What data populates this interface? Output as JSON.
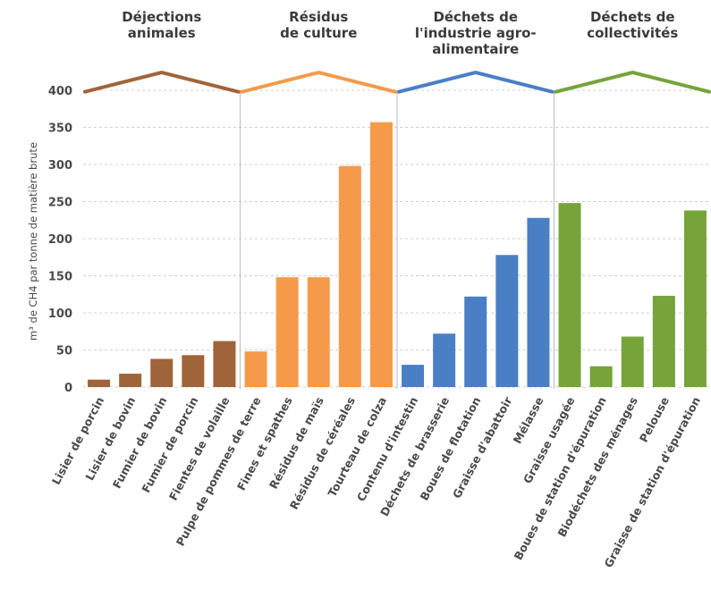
{
  "chart_data": {
    "type": "bar",
    "title": "",
    "xlabel": "",
    "ylabel": "m³ de CH4 par tonne de matière brute",
    "ylim": [
      0,
      400
    ],
    "yticks": [
      0,
      50,
      100,
      150,
      200,
      250,
      300,
      350,
      400
    ],
    "grid": true,
    "legend": "none",
    "groups": [
      {
        "name": "Déjections animales",
        "color": "#a0643a",
        "categories": [
          "Lisier de porcin",
          "Lisier de bovin",
          "Fumier de bovin",
          "Fumier de porcin",
          "Fientes de volaille"
        ],
        "values": [
          10,
          18,
          38,
          43,
          62
        ]
      },
      {
        "name": "Résidus de culture",
        "color": "#f59a4a",
        "categories": [
          "Pulpe de pommes de terre",
          "Fines et spathes",
          "Résidus de maïs",
          "Résidus de céréales",
          "Tourteau de colza"
        ],
        "values": [
          48,
          148,
          148,
          298,
          357
        ]
      },
      {
        "name": "Déchets de l'industrie agro-alimentaire",
        "color": "#4a7fc6",
        "categories": [
          "Contenu d'intestin",
          "Déchets de brasserie",
          "Boues de flotation",
          "Graisse d'abattoir",
          "Mélasse"
        ],
        "values": [
          30,
          72,
          122,
          178,
          228
        ]
      },
      {
        "name": "Déchets de collectivités",
        "color": "#76a33a",
        "categories": [
          "Graisse usagée",
          "Boues de station d'épuration",
          "Biodéchets des ménages",
          "Pelouse",
          "Graisse de station d'épuration"
        ],
        "values": [
          248,
          28,
          68,
          123,
          238
        ]
      }
    ]
  },
  "group_title_lines": [
    [
      "Déjections",
      "animales"
    ],
    [
      "Résidus",
      "de culture"
    ],
    [
      "Déchets de",
      "l'industrie agro-",
      "alimentaire"
    ],
    [
      "Déchets de",
      "collectivités"
    ]
  ]
}
